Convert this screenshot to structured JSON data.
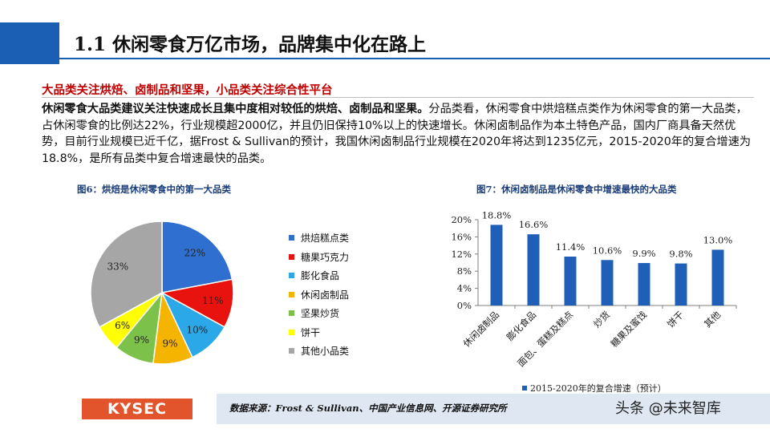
{
  "header": {
    "title": "1.1 休闲零食万亿市场，品牌集中化在路上"
  },
  "subtitle": "大品类关注烘焙、卤制品和坚果，小品类关注综合性平台",
  "paragraph": {
    "bold_lead": "休闲零食大品类建议关注快速成长且集中度相对较低的烘焙、卤制品和坚果。",
    "body": "分品类看，休闲零食中烘焙糕点类作为休闲零食的第一大品类，占休闲零食的比例达22%，行业规模超2000亿，并且仍旧保持10%以上的快速增长。休闲卤制品作为本土特色产品，国内厂商具备天然优势，目前行业规模已近千亿，据Frost & Sullivan的预计，我国休闲卤制品行业规模在2020年将达到1235亿元，2015-2020年的复合增速为18.8%，是所有品类中复合增速最快的品类。"
  },
  "figure6": {
    "title": "图6：烘焙是休闲零食中的第一大品类"
  },
  "figure7": {
    "title": "图7：休闲卤制品是休闲零食中增速最快的大品类"
  },
  "chart_data": [
    {
      "type": "pie",
      "title": "图6：烘焙是休闲零食中的第一大品类",
      "categories": [
        "烘焙糕点类",
        "糖果巧克力",
        "膨化食品",
        "休闲卤制品",
        "坚果炒货",
        "饼干",
        "其他小品类"
      ],
      "values": [
        22,
        11,
        10,
        9,
        9,
        6,
        33
      ],
      "labels": [
        "22%",
        "11%",
        "10%",
        "9%",
        "9%",
        "6%",
        "33%"
      ],
      "colors": [
        "#2e6fd0",
        "#e8130f",
        "#2aa8e8",
        "#f5b400",
        "#7cc24a",
        "#ffff00",
        "#a6a6a6"
      ],
      "legend_position": "right"
    },
    {
      "type": "bar",
      "title": "图7：休闲卤制品是休闲零食中增速最快的大品类",
      "categories": [
        "休闲卤制品",
        "膨化食品",
        "面包、蛋糕及糕点",
        "炒货",
        "糖果及蜜饯",
        "饼干",
        "其他"
      ],
      "series": [
        {
          "name": "2015-2020年的复合增速（预计）",
          "values": [
            18.8,
            16.6,
            11.4,
            10.6,
            9.9,
            9.8,
            13.0
          ],
          "labels": [
            "18.8%",
            "16.6%",
            "11.4%",
            "10.6%",
            "9.9%",
            "9.8%",
            "13.0%"
          ]
        }
      ],
      "ylim": [
        0,
        20
      ],
      "yticks": [
        "0%",
        "4%",
        "8%",
        "12%",
        "16%",
        "20%"
      ],
      "ytick_values": [
        0,
        4,
        8,
        12,
        16,
        20
      ],
      "color": "#1f5fb8",
      "grid": false,
      "legend_position": "bottom"
    }
  ],
  "footer": {
    "logo": "KYSEC",
    "source": "数据来源：Frost & Sullivan、中国产业信息网、开源证券研究所",
    "watermark": "头条 @未来智库"
  }
}
